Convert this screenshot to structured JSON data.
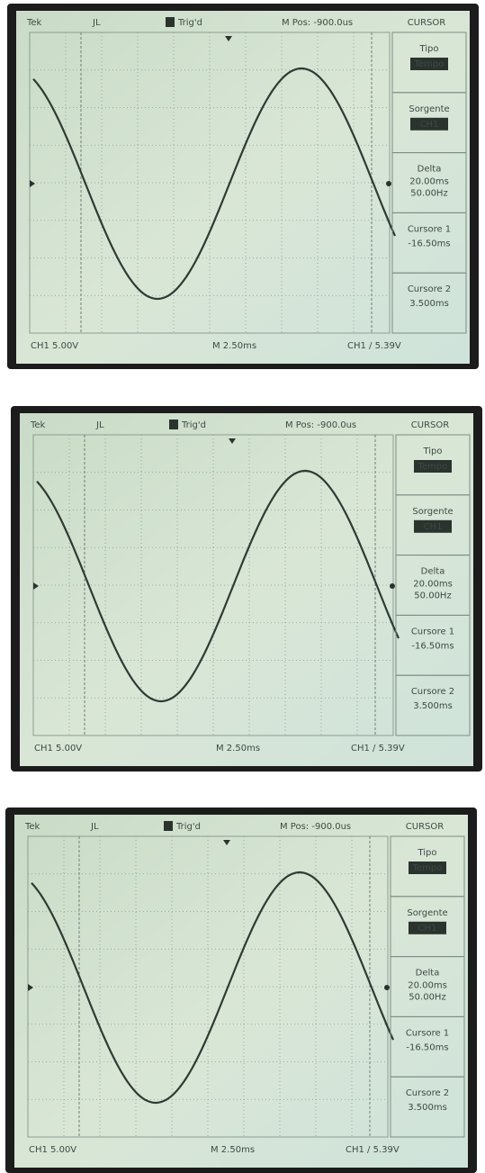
{
  "screens": [
    {
      "header": {
        "brand": "Tek",
        "trigger_icon": "JL",
        "status": "Trig'd",
        "position": "M Pos: -900.0us",
        "menu": "CURSOR"
      },
      "menu": [
        {
          "label": "Tipo",
          "value": "Tempo"
        },
        {
          "label": "Sorgente",
          "value": "CH1"
        },
        {
          "label": "Delta",
          "lines": [
            "20.00ms",
            "50.00Hz"
          ]
        },
        {
          "label": "Cursore 1",
          "value": "-16.50ms"
        },
        {
          "label": "Cursore 2",
          "value": "3.500ms"
        }
      ],
      "footer": {
        "channel": "CH1 5.00V",
        "timebase": "M 2.50ms",
        "trigger": "CH1 / 5.39V"
      }
    },
    {
      "header": {
        "brand": "Tek",
        "trigger_icon": "JL",
        "status": "Trig'd",
        "position": "M Pos: -900.0us",
        "menu": "CURSOR"
      },
      "menu": [
        {
          "label": "Tipo",
          "value": "Tempo"
        },
        {
          "label": "Sorgente",
          "value": "CH1"
        },
        {
          "label": "Delta",
          "lines": [
            "20.00ms",
            "50.00Hz"
          ]
        },
        {
          "label": "Cursore 1",
          "value": "-16.50ms"
        },
        {
          "label": "Cursore 2",
          "value": "3.500ms"
        }
      ],
      "footer": {
        "channel": "CH1 5.00V",
        "timebase": "M 2.50ms",
        "trigger": "CH1 / 5.39V"
      }
    },
    {
      "header": {
        "brand": "Tek",
        "trigger_icon": "JL",
        "status": "Trig'd",
        "position": "M Pos: -900.0us",
        "menu": "CURSOR"
      },
      "menu": [
        {
          "label": "Tipo",
          "value": "Tempo"
        },
        {
          "label": "Sorgente",
          "value": "CH1"
        },
        {
          "label": "Delta",
          "lines": [
            "20.00ms",
            "50.00Hz"
          ]
        },
        {
          "label": "Cursore 1",
          "value": "-16.50ms"
        },
        {
          "label": "Cursore 2",
          "value": "3.500ms"
        }
      ],
      "footer": {
        "channel": "CH1 5.00V",
        "timebase": "M 2.50ms",
        "trigger": "CH1 / 5.39V"
      }
    }
  ]
}
